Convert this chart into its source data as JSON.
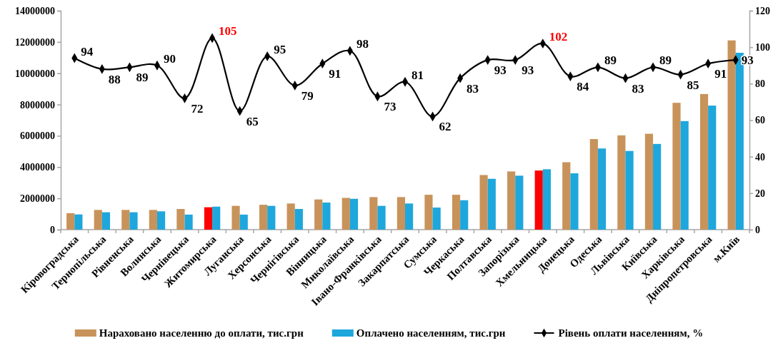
{
  "chart_data": {
    "type": "bar",
    "categories": [
      "Кіровоградська",
      "Тернопільська",
      "Рівненська",
      "Волинська",
      "Чернівецька",
      "Житомирська",
      "Луганська",
      "Херсонська",
      "Чернігівська",
      "Вінницька",
      "Миколаївська",
      "Івано-Франківська",
      "Закарпатська",
      "Сумська",
      "Черкаська",
      "Полтавська",
      "Запорізька",
      "Хмельницька",
      "Донецька",
      "Одеська",
      "Львівська",
      "Київська",
      "Харківська",
      "Дніпропетровська",
      "м.Київ"
    ],
    "series": [
      {
        "name": "Нараховано населенню до оплати, тис.грн",
        "color": "#c8935a",
        "colors": [
          "#c8935a",
          "#c8935a",
          "#c8935a",
          "#c8935a",
          "#c8935a",
          "#ff0000",
          "#c8935a",
          "#c8935a",
          "#c8935a",
          "#c8935a",
          "#c8935a",
          "#c8935a",
          "#c8935a",
          "#c8935a",
          "#c8935a",
          "#c8935a",
          "#c8935a",
          "#ff0000",
          "#c8935a",
          "#c8935a",
          "#c8935a",
          "#c8935a",
          "#c8935a",
          "#c8935a",
          "#c8935a"
        ],
        "values": [
          1050000,
          1260000,
          1260000,
          1260000,
          1320000,
          1430000,
          1520000,
          1590000,
          1670000,
          1930000,
          2030000,
          2080000,
          2080000,
          2230000,
          2230000,
          3490000,
          3720000,
          3780000,
          4310000,
          5790000,
          6030000,
          6130000,
          8110000,
          8670000,
          12100000
        ]
      },
      {
        "name": "Оплачено населенням, тис.грн",
        "color": "#1ea7dc",
        "values": [
          970000,
          1110000,
          1110000,
          1170000,
          960000,
          1470000,
          960000,
          1520000,
          1320000,
          1730000,
          1970000,
          1520000,
          1670000,
          1410000,
          1880000,
          3250000,
          3450000,
          3860000,
          3600000,
          5190000,
          5030000,
          5480000,
          6940000,
          7930000,
          11310000
        ]
      },
      {
        "name": "Рівень оплати населенням, %",
        "type": "line",
        "axis": "y2",
        "color": "#000000",
        "values": [
          94,
          88,
          89,
          90,
          72,
          105,
          65,
          95,
          79,
          91,
          98,
          73,
          81,
          62,
          83,
          93,
          93,
          102,
          84,
          89,
          83,
          89,
          85,
          91,
          93
        ],
        "value_labels": [
          "94",
          "88",
          "89",
          "90",
          "72",
          "105",
          "65",
          "95",
          "79",
          "91",
          "98",
          "73",
          "81",
          "62",
          "83",
          "93",
          "93",
          "102",
          "84",
          "89",
          "83",
          "89",
          "85",
          "91",
          "93"
        ]
      }
    ],
    "ylim": [
      0,
      14000000
    ],
    "yticks": [
      0,
      2000000,
      4000000,
      6000000,
      8000000,
      10000000,
      12000000,
      14000000
    ],
    "y2lim": [
      0,
      120
    ],
    "y2ticks": [
      0,
      20,
      40,
      60,
      80,
      100,
      120
    ],
    "marker": "diamond",
    "legend": "bottom"
  }
}
